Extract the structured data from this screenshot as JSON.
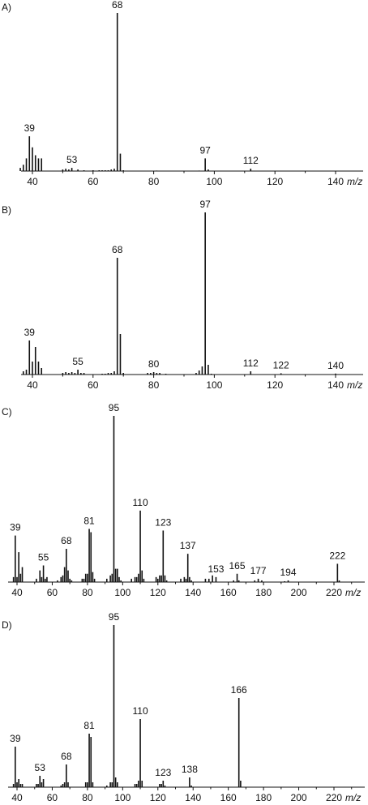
{
  "chart_data": [
    {
      "type": "bar",
      "panel_label": "A)",
      "xlabel": "m/z",
      "xlim": [
        30,
        152
      ],
      "ylim": [
        0,
        100
      ],
      "x_ticks": [
        40,
        60,
        80,
        100,
        120,
        140
      ],
      "peaks": [
        {
          "x": 36,
          "y": 2
        },
        {
          "x": 37,
          "y": 4
        },
        {
          "x": 38,
          "y": 8
        },
        {
          "x": 39,
          "y": 22
        },
        {
          "x": 40,
          "y": 15
        },
        {
          "x": 41,
          "y": 10
        },
        {
          "x": 42,
          "y": 8
        },
        {
          "x": 43,
          "y": 8
        },
        {
          "x": 50,
          "y": 1
        },
        {
          "x": 51,
          "y": 1.5
        },
        {
          "x": 52,
          "y": 1
        },
        {
          "x": 53,
          "y": 2
        },
        {
          "x": 55,
          "y": 1
        },
        {
          "x": 57,
          "y": 0.5
        },
        {
          "x": 60,
          "y": 0.5
        },
        {
          "x": 62,
          "y": 0.5
        },
        {
          "x": 63,
          "y": 0.5
        },
        {
          "x": 64,
          "y": 0.5
        },
        {
          "x": 65,
          "y": 0.5
        },
        {
          "x": 66,
          "y": 1
        },
        {
          "x": 67,
          "y": 1.5
        },
        {
          "x": 68,
          "y": 100
        },
        {
          "x": 69,
          "y": 11
        },
        {
          "x": 70,
          "y": 0.5
        },
        {
          "x": 81,
          "y": 0.3
        },
        {
          "x": 95,
          "y": 0.3
        },
        {
          "x": 97,
          "y": 8
        },
        {
          "x": 98,
          "y": 1
        },
        {
          "x": 112,
          "y": 1.5
        }
      ],
      "peak_labels": [
        39,
        53,
        68,
        97,
        112
      ]
    },
    {
      "type": "bar",
      "panel_label": "B)",
      "xlabel": "m/z",
      "xlim": [
        30,
        152
      ],
      "ylim": [
        0,
        100
      ],
      "x_ticks": [
        40,
        60,
        80,
        100,
        120,
        140
      ],
      "peaks": [
        {
          "x": 37,
          "y": 2
        },
        {
          "x": 38,
          "y": 3
        },
        {
          "x": 39,
          "y": 21
        },
        {
          "x": 40,
          "y": 8
        },
        {
          "x": 41,
          "y": 17
        },
        {
          "x": 42,
          "y": 8
        },
        {
          "x": 43,
          "y": 4
        },
        {
          "x": 50,
          "y": 1
        },
        {
          "x": 51,
          "y": 1.5
        },
        {
          "x": 52,
          "y": 1
        },
        {
          "x": 53,
          "y": 1.5
        },
        {
          "x": 54,
          "y": 1
        },
        {
          "x": 55,
          "y": 3
        },
        {
          "x": 56,
          "y": 1
        },
        {
          "x": 57,
          "y": 1
        },
        {
          "x": 63,
          "y": 0.5
        },
        {
          "x": 64,
          "y": 0.5
        },
        {
          "x": 65,
          "y": 1
        },
        {
          "x": 66,
          "y": 1
        },
        {
          "x": 67,
          "y": 2
        },
        {
          "x": 68,
          "y": 72
        },
        {
          "x": 69,
          "y": 25
        },
        {
          "x": 70,
          "y": 1
        },
        {
          "x": 78,
          "y": 1
        },
        {
          "x": 79,
          "y": 1
        },
        {
          "x": 80,
          "y": 1.5
        },
        {
          "x": 81,
          "y": 1
        },
        {
          "x": 82,
          "y": 1
        },
        {
          "x": 84,
          "y": 0.5
        },
        {
          "x": 94,
          "y": 1
        },
        {
          "x": 95,
          "y": 2.5
        },
        {
          "x": 96,
          "y": 5
        },
        {
          "x": 97,
          "y": 100
        },
        {
          "x": 98,
          "y": 6
        },
        {
          "x": 99,
          "y": 0.5
        },
        {
          "x": 112,
          "y": 2
        },
        {
          "x": 122,
          "y": 0.8
        },
        {
          "x": 140,
          "y": 0.6
        }
      ],
      "peak_labels": [
        39,
        55,
        68,
        80,
        97,
        112,
        122,
        140
      ]
    },
    {
      "type": "bar",
      "panel_label": "C)",
      "xlabel": "m/z",
      "xlim": [
        35,
        232
      ],
      "ylim": [
        0,
        100
      ],
      "x_ticks": [
        40,
        60,
        80,
        100,
        120,
        140,
        160,
        180,
        200,
        220
      ],
      "peaks": [
        {
          "x": 38,
          "y": 3
        },
        {
          "x": 39,
          "y": 28
        },
        {
          "x": 40,
          "y": 3
        },
        {
          "x": 41,
          "y": 18
        },
        {
          "x": 42,
          "y": 5
        },
        {
          "x": 43,
          "y": 9
        },
        {
          "x": 51,
          "y": 2
        },
        {
          "x": 53,
          "y": 7
        },
        {
          "x": 54,
          "y": 3
        },
        {
          "x": 55,
          "y": 10
        },
        {
          "x": 56,
          "y": 2
        },
        {
          "x": 57,
          "y": 3
        },
        {
          "x": 63,
          "y": 1
        },
        {
          "x": 65,
          "y": 3
        },
        {
          "x": 66,
          "y": 4
        },
        {
          "x": 67,
          "y": 9
        },
        {
          "x": 68,
          "y": 20
        },
        {
          "x": 69,
          "y": 7
        },
        {
          "x": 70,
          "y": 2
        },
        {
          "x": 71,
          "y": 1
        },
        {
          "x": 77,
          "y": 2
        },
        {
          "x": 78,
          "y": 2
        },
        {
          "x": 79,
          "y": 5
        },
        {
          "x": 80,
          "y": 5
        },
        {
          "x": 81,
          "y": 32
        },
        {
          "x": 82,
          "y": 30
        },
        {
          "x": 83,
          "y": 6
        },
        {
          "x": 84,
          "y": 2
        },
        {
          "x": 91,
          "y": 2
        },
        {
          "x": 93,
          "y": 4
        },
        {
          "x": 94,
          "y": 5
        },
        {
          "x": 95,
          "y": 100
        },
        {
          "x": 96,
          "y": 8
        },
        {
          "x": 97,
          "y": 8
        },
        {
          "x": 98,
          "y": 3
        },
        {
          "x": 99,
          "y": 1
        },
        {
          "x": 105,
          "y": 2
        },
        {
          "x": 107,
          "y": 3
        },
        {
          "x": 108,
          "y": 3
        },
        {
          "x": 109,
          "y": 5
        },
        {
          "x": 110,
          "y": 43
        },
        {
          "x": 111,
          "y": 7
        },
        {
          "x": 112,
          "y": 2
        },
        {
          "x": 119,
          "y": 3
        },
        {
          "x": 120,
          "y": 2
        },
        {
          "x": 121,
          "y": 4
        },
        {
          "x": 122,
          "y": 4
        },
        {
          "x": 123,
          "y": 31
        },
        {
          "x": 124,
          "y": 4
        },
        {
          "x": 125,
          "y": 1
        },
        {
          "x": 133,
          "y": 2
        },
        {
          "x": 135,
          "y": 3
        },
        {
          "x": 136,
          "y": 2
        },
        {
          "x": 137,
          "y": 17
        },
        {
          "x": 138,
          "y": 3
        },
        {
          "x": 139,
          "y": 1
        },
        {
          "x": 147,
          "y": 2
        },
        {
          "x": 149,
          "y": 2
        },
        {
          "x": 151,
          "y": 4
        },
        {
          "x": 153,
          "y": 3
        },
        {
          "x": 163,
          "y": 1
        },
        {
          "x": 165,
          "y": 5
        },
        {
          "x": 166,
          "y": 1
        },
        {
          "x": 175,
          "y": 1
        },
        {
          "x": 177,
          "y": 2
        },
        {
          "x": 179,
          "y": 1
        },
        {
          "x": 192,
          "y": 0.5
        },
        {
          "x": 194,
          "y": 1
        },
        {
          "x": 222,
          "y": 11
        },
        {
          "x": 223,
          "y": 1
        }
      ],
      "peak_labels": [
        39,
        55,
        68,
        81,
        95,
        110,
        123,
        137,
        153,
        165,
        177,
        194,
        222
      ]
    },
    {
      "type": "bar",
      "panel_label": "D)",
      "xlabel": "m/z",
      "xlim": [
        35,
        232
      ],
      "ylim": [
        0,
        100
      ],
      "x_ticks": [
        40,
        60,
        80,
        100,
        120,
        140,
        160,
        180,
        200,
        220
      ],
      "peaks": [
        {
          "x": 38,
          "y": 2
        },
        {
          "x": 39,
          "y": 25
        },
        {
          "x": 40,
          "y": 3
        },
        {
          "x": 41,
          "y": 5
        },
        {
          "x": 42,
          "y": 2
        },
        {
          "x": 43,
          "y": 2
        },
        {
          "x": 51,
          "y": 2
        },
        {
          "x": 52,
          "y": 2
        },
        {
          "x": 53,
          "y": 7
        },
        {
          "x": 54,
          "y": 3
        },
        {
          "x": 55,
          "y": 5
        },
        {
          "x": 65,
          "y": 1
        },
        {
          "x": 66,
          "y": 2
        },
        {
          "x": 67,
          "y": 3
        },
        {
          "x": 68,
          "y": 14
        },
        {
          "x": 69,
          "y": 3
        },
        {
          "x": 79,
          "y": 3
        },
        {
          "x": 80,
          "y": 3
        },
        {
          "x": 81,
          "y": 33
        },
        {
          "x": 82,
          "y": 31
        },
        {
          "x": 83,
          "y": 3
        },
        {
          "x": 91,
          "y": 1
        },
        {
          "x": 93,
          "y": 3
        },
        {
          "x": 94,
          "y": 3
        },
        {
          "x": 95,
          "y": 100
        },
        {
          "x": 96,
          "y": 6
        },
        {
          "x": 97,
          "y": 3
        },
        {
          "x": 107,
          "y": 2
        },
        {
          "x": 108,
          "y": 2
        },
        {
          "x": 109,
          "y": 4
        },
        {
          "x": 110,
          "y": 42
        },
        {
          "x": 111,
          "y": 4
        },
        {
          "x": 121,
          "y": 2
        },
        {
          "x": 122,
          "y": 2
        },
        {
          "x": 123,
          "y": 4
        },
        {
          "x": 124,
          "y": 1
        },
        {
          "x": 138,
          "y": 6
        },
        {
          "x": 139,
          "y": 1
        },
        {
          "x": 166,
          "y": 55
        },
        {
          "x": 167,
          "y": 4
        }
      ],
      "peak_labels": [
        39,
        53,
        68,
        81,
        95,
        110,
        123,
        138,
        166
      ]
    }
  ]
}
